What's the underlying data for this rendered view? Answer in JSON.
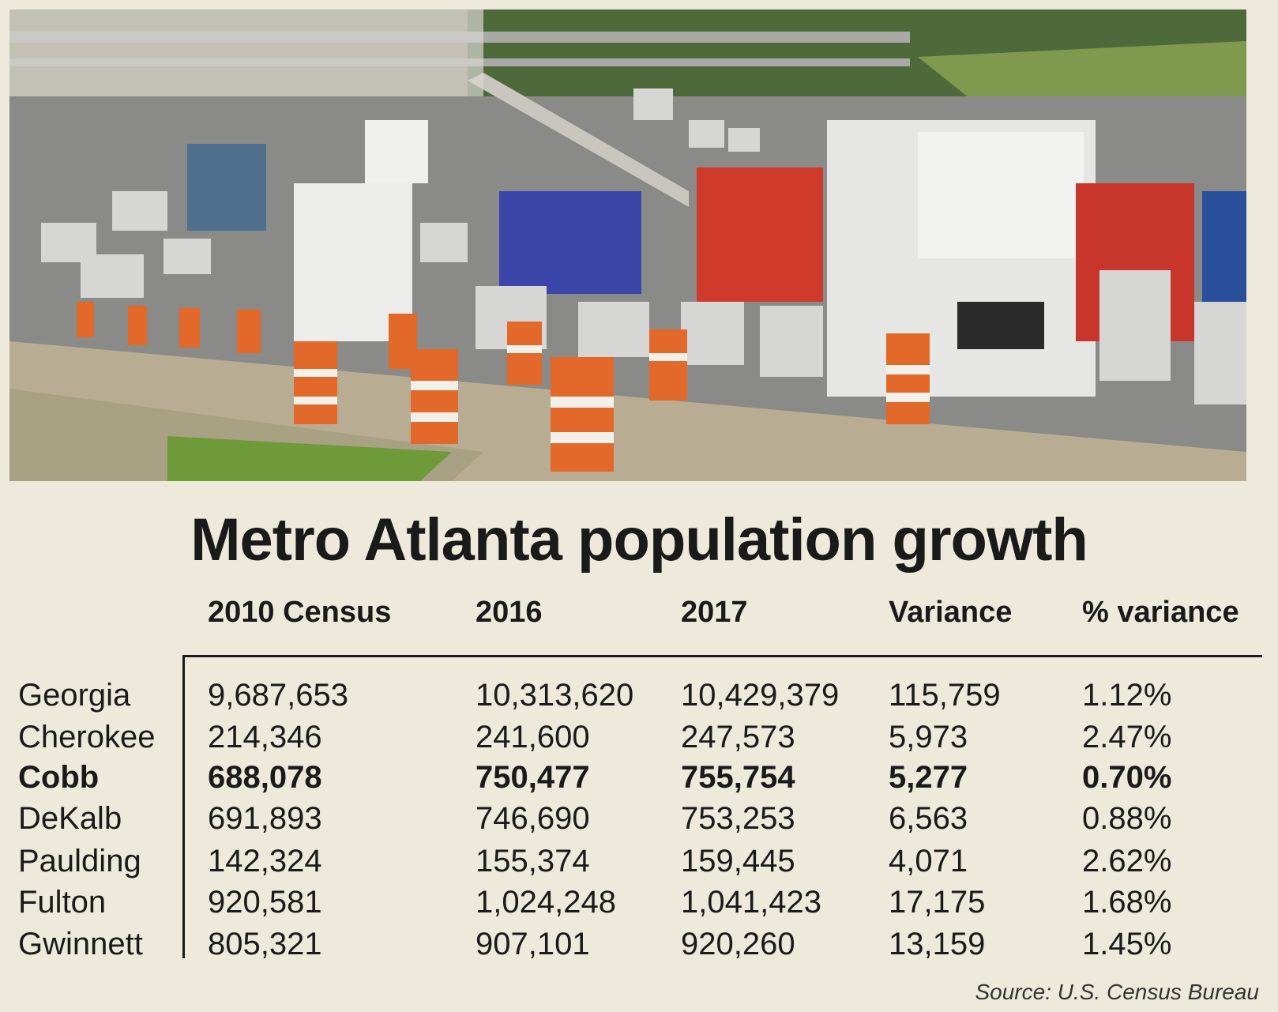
{
  "title": "Metro Atlanta population growth",
  "table": {
    "header": [
      "2010 Census",
      "2016",
      "2017",
      "Variance",
      "% variance"
    ],
    "rows": [
      [
        "Georgia",
        "9,687,653",
        "10,313,620",
        "10,429,379",
        "115,759",
        "1.12%"
      ],
      [
        "Cherokee",
        "214,346",
        "241,600",
        "247,573",
        "5,973",
        "2.47%"
      ],
      [
        "Cobb",
        "688,078",
        "750,477",
        "755,754",
        "5,277",
        "0.70%"
      ],
      [
        "DeKalb",
        "691,893",
        "746,690",
        "753,253",
        "6,563",
        "0.88%"
      ],
      [
        "Paulding",
        "142,324",
        "155,374",
        "159,445",
        "4,071",
        "2.62%"
      ],
      [
        "Fulton",
        "920,581",
        "1,024,248",
        "1,041,423",
        "17,175",
        "1.68%"
      ],
      [
        "Gwinnett",
        "805,321",
        "907,101",
        "920,260",
        "13,159",
        "1.45%"
      ]
    ]
  },
  "source": "Source: U.S. Census Bureau"
}
